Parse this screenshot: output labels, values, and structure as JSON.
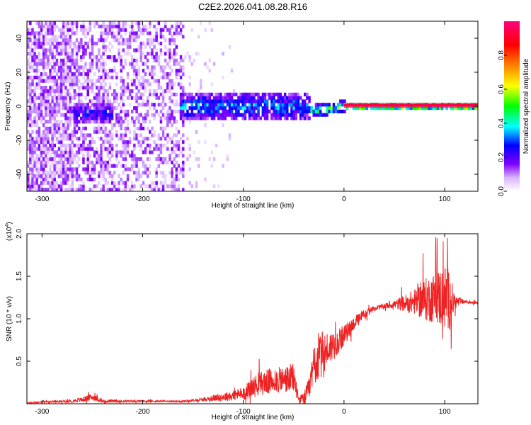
{
  "title": "C2E2.2026.041.08.28.R16",
  "chart_data": [
    {
      "type": "heatmap",
      "name": "spectrogram",
      "xlabel": "Height of straight line (km)",
      "ylabel": "Frequency (Hz)",
      "xlim": [
        -315,
        133
      ],
      "ylim": [
        -50,
        50
      ],
      "xticks": [
        "-300",
        "-200",
        "-100",
        "0",
        "100"
      ],
      "xtick_values": [
        -300,
        -200,
        -100,
        0,
        100
      ],
      "yticks": [
        "-40",
        "-20",
        "0",
        "20",
        "40"
      ],
      "ytick_values": [
        -40,
        -20,
        0,
        20,
        40
      ],
      "colorbar": {
        "label": "Normalized spectral amplitude",
        "range": [
          0,
          1
        ],
        "ticks": [
          "0.0",
          "0.2",
          "0.4",
          "0.6",
          "0.8"
        ],
        "tick_values": [
          0,
          0.2,
          0.4,
          0.6,
          0.8
        ],
        "colormap": [
          "#ffffff",
          "#d9b3ff",
          "#8000ff",
          "#0000ff",
          "#00ffff",
          "#00ff00",
          "#ffff00",
          "#ff8000",
          "#ff0000",
          "#ff0080"
        ]
      },
      "features": [
        {
          "x_range": [
            -315,
            -160
          ],
          "description": "broadband noise, purple",
          "freq_range": [
            -50,
            50
          ]
        },
        {
          "x_range": [
            -270,
            -230
          ],
          "center_freq": -4,
          "width_hz": 10,
          "peak_amplitude": 0.35
        },
        {
          "x_range": [
            -165,
            -35
          ],
          "center_freq": 0,
          "width_hz": 12,
          "peak_amplitude": 0.45
        },
        {
          "x_range": [
            -35,
            0
          ],
          "center_freq": -3,
          "width_hz": 4,
          "peak_amplitude": 0.6
        },
        {
          "x_range": [
            0,
            133
          ],
          "center_freq": 0.5,
          "width_hz": 1,
          "peak_amplitude": 0.95
        }
      ]
    },
    {
      "type": "line",
      "name": "snr",
      "xlabel": "Height of straight line (km)",
      "ylabel": "SNR (10 * v/v)",
      "y_multiplier": "(x10^4)",
      "y_multiplier_base": "(x10",
      "y_multiplier_exp": "4",
      "y_multiplier_close": ")",
      "xlim": [
        -315,
        133
      ],
      "ylim": [
        0,
        2.0
      ],
      "xticks": [
        "-300",
        "-200",
        "-100",
        "0",
        "100"
      ],
      "xtick_values": [
        -300,
        -200,
        -100,
        0,
        100
      ],
      "yticks": [
        "0.5",
        "1.0",
        "1.5",
        "2.0"
      ],
      "ytick_values": [
        0.5,
        1.0,
        1.5,
        2.0
      ],
      "series": [
        {
          "name": "SNR",
          "color": "#ee2222",
          "x": [
            -315,
            -300,
            -270,
            -260,
            -250,
            -240,
            -200,
            -160,
            -140,
            -120,
            -100,
            -90,
            -80,
            -70,
            -60,
            -50,
            -45,
            -40,
            -35,
            -30,
            -25,
            -20,
            -15,
            -10,
            0,
            10,
            20,
            30,
            40,
            50,
            60,
            70,
            80,
            90,
            100,
            105,
            110,
            120,
            133
          ],
          "y": [
            0.01,
            0.02,
            0.03,
            0.05,
            0.08,
            0.03,
            0.03,
            0.03,
            0.05,
            0.08,
            0.12,
            0.2,
            0.25,
            0.27,
            0.28,
            0.3,
            0.05,
            0.05,
            0.15,
            0.45,
            0.55,
            0.6,
            0.65,
            0.7,
            0.8,
            0.95,
            1.05,
            1.12,
            1.15,
            1.17,
            1.18,
            1.2,
            1.22,
            1.25,
            1.25,
            1.22,
            1.2,
            1.2,
            1.19
          ],
          "noise": [
            0.005,
            0.01,
            0.015,
            0.03,
            0.04,
            0.02,
            0.01,
            0.01,
            0.02,
            0.05,
            0.08,
            0.12,
            0.15,
            0.15,
            0.16,
            0.18,
            0.05,
            0.08,
            0.15,
            0.25,
            0.3,
            0.25,
            0.2,
            0.18,
            0.12,
            0.08,
            0.05,
            0.03,
            0.03,
            0.05,
            0.1,
            0.15,
            0.25,
            0.3,
            0.4,
            0.35,
            0.08,
            0.02,
            0.02
          ]
        }
      ]
    }
  ]
}
